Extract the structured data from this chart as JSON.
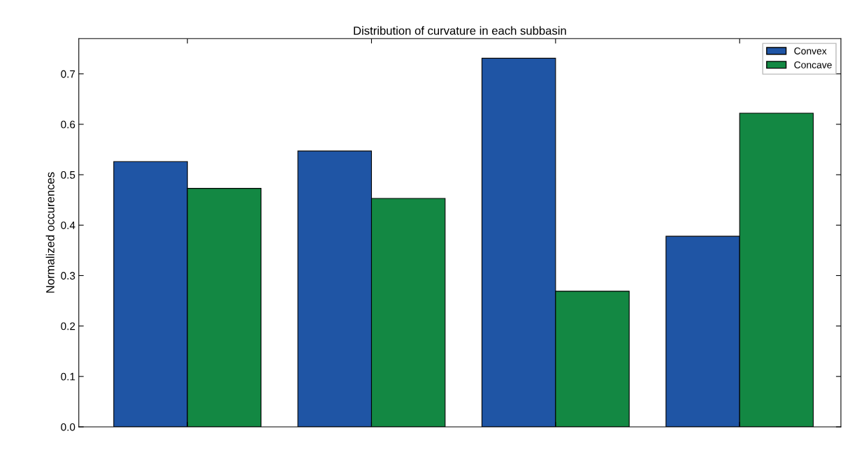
{
  "chart_data": {
    "type": "bar",
    "title": "Distribution of curvature in each subbasin",
    "ylabel": "Normalized occurences",
    "categories": [
      null,
      null,
      null,
      null
    ],
    "series": [
      {
        "name": "Convex",
        "color": "#1f55a5",
        "values": [
          0.526,
          0.547,
          0.731,
          0.378
        ]
      },
      {
        "name": "Concave",
        "color": "#138843",
        "values": [
          0.473,
          0.453,
          0.269,
          0.622
        ]
      }
    ],
    "ylim": [
      0,
      0.77
    ],
    "yticks": [
      {
        "value": 0,
        "label": "0.0"
      },
      0.1,
      0.2,
      0.3,
      0.4,
      0.5,
      0.6,
      0.7
    ],
    "grid": false,
    "legend": "top right"
  }
}
